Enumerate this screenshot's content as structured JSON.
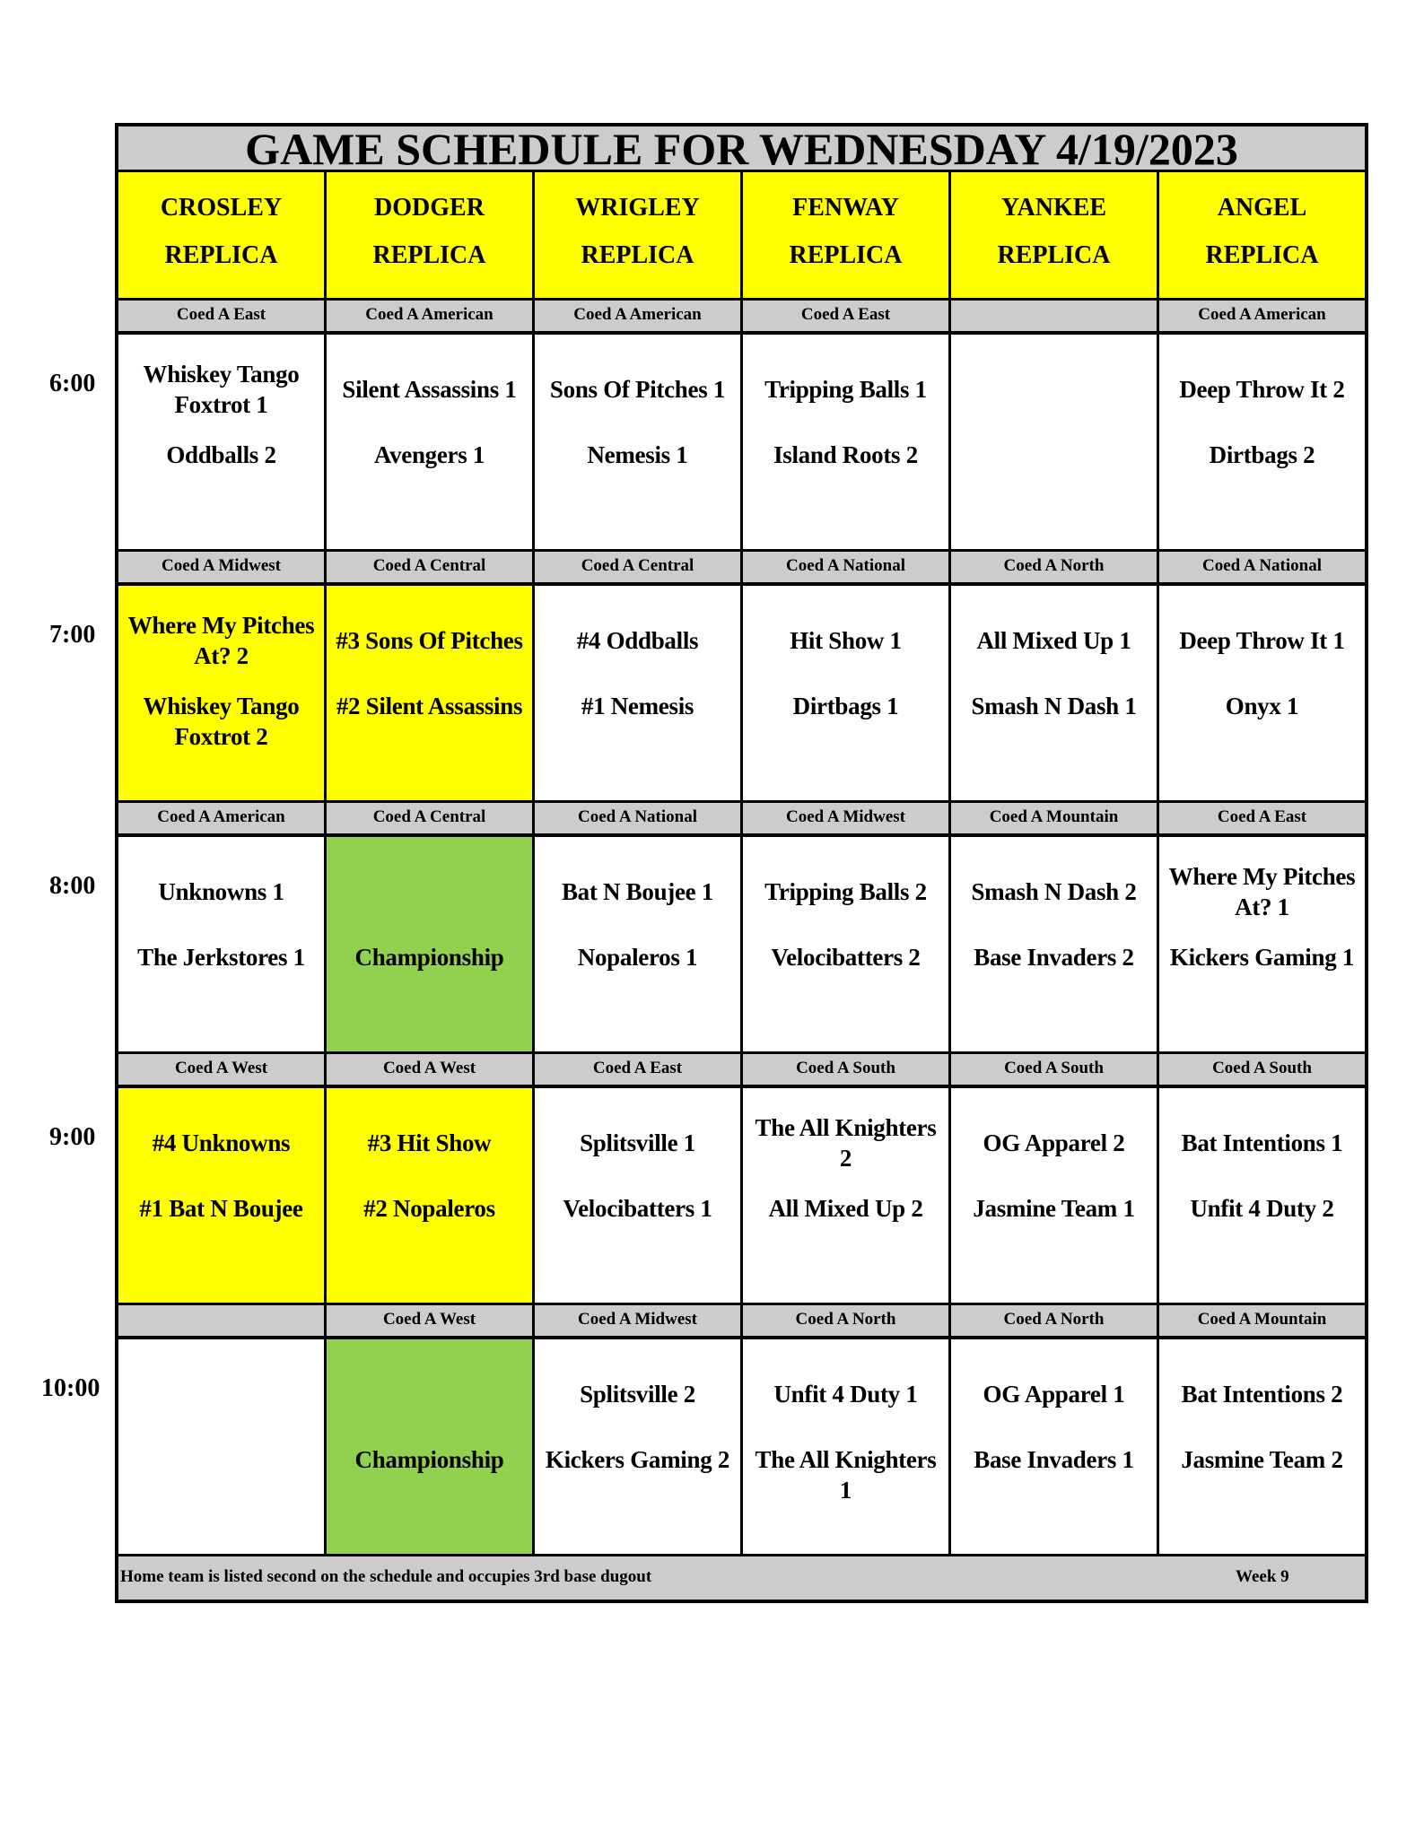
{
  "title": "GAME SCHEDULE FOR WEDNESDAY 4/19/2023",
  "fields": [
    {
      "name": "CROSLEY",
      "sub": "REPLICA"
    },
    {
      "name": "DODGER",
      "sub": "REPLICA"
    },
    {
      "name": "WRIGLEY",
      "sub": "REPLICA"
    },
    {
      "name": "FENWAY",
      "sub": "REPLICA"
    },
    {
      "name": "YANKEE",
      "sub": "REPLICA"
    },
    {
      "name": "ANGEL",
      "sub": "REPLICA"
    }
  ],
  "colors": {
    "header": "#ffff00",
    "division": "#cccccc",
    "playoff": "#ffff00",
    "championship": "#92d050"
  },
  "slots": [
    {
      "time": "6:00",
      "divisions": [
        "Coed A East",
        "Coed A American",
        "Coed A American",
        "Coed A East",
        "",
        "Coed A American"
      ],
      "games": [
        {
          "top": "Whiskey Tango Foxtrot 1",
          "bottom": "Oddballs 2",
          "bg": "white"
        },
        {
          "top": "Silent Assassins 1",
          "bottom": "Avengers 1",
          "bg": "white"
        },
        {
          "top": "Sons Of Pitches 1",
          "bottom": "Nemesis 1",
          "bg": "white"
        },
        {
          "top": "Tripping Balls 1",
          "bottom": "Island Roots 2",
          "bg": "white"
        },
        {
          "top": "",
          "bottom": "",
          "bg": "white"
        },
        {
          "top": "Deep Throw It 2",
          "bottom": "Dirtbags 2",
          "bg": "white"
        }
      ]
    },
    {
      "time": "7:00",
      "divisions": [
        "Coed A Midwest",
        "Coed A Central",
        "Coed A Central",
        "Coed A National",
        "Coed A North",
        "Coed A National"
      ],
      "games": [
        {
          "top": "Where My Pitches At? 2",
          "bottom": "Whiskey Tango Foxtrot 2",
          "bg": "yellow"
        },
        {
          "top": "#3 Sons Of Pitches",
          "bottom": "#2 Silent Assassins",
          "bg": "yellow"
        },
        {
          "top": "#4 Oddballs",
          "bottom": "#1 Nemesis",
          "bg": "white"
        },
        {
          "top": "Hit Show 1",
          "bottom": "Dirtbags 1",
          "bg": "white"
        },
        {
          "top": "All Mixed Up 1",
          "bottom": "Smash N Dash 1",
          "bg": "white"
        },
        {
          "top": "Deep Throw It 1",
          "bottom": "Onyx 1",
          "bg": "white"
        }
      ]
    },
    {
      "time": "8:00",
      "divisions": [
        "Coed A American",
        "Coed A Central",
        "Coed A National",
        "Coed A Midwest",
        "Coed A Mountain",
        "Coed A East"
      ],
      "games": [
        {
          "top": "Unknowns 1",
          "bottom": "The Jerkstores 1",
          "bg": "white"
        },
        {
          "top": "",
          "bottom": "Championship",
          "bg": "green"
        },
        {
          "top": "Bat N Boujee 1",
          "bottom": "Nopaleros 1",
          "bg": "white"
        },
        {
          "top": "Tripping Balls 2",
          "bottom": "Velocibatters 2",
          "bg": "white"
        },
        {
          "top": "Smash N Dash 2",
          "bottom": "Base Invaders 2",
          "bg": "white"
        },
        {
          "top": "Where My Pitches At? 1",
          "bottom": "Kickers Gaming 1",
          "bg": "white"
        }
      ]
    },
    {
      "time": "9:00",
      "divisions": [
        "Coed A West",
        "Coed A West",
        "Coed A East",
        "Coed A South",
        "Coed A South",
        "Coed A South"
      ],
      "games": [
        {
          "top": "#4 Unknowns",
          "bottom": "#1 Bat N Boujee",
          "bg": "yellow"
        },
        {
          "top": "#3 Hit Show",
          "bottom": "#2 Nopaleros",
          "bg": "yellow"
        },
        {
          "top": "Splitsville 1",
          "bottom": "Velocibatters 1",
          "bg": "white"
        },
        {
          "top": "The All Knighters 2",
          "bottom": "All Mixed Up 2",
          "bg": "white"
        },
        {
          "top": "OG Apparel 2",
          "bottom": "Jasmine Team 1",
          "bg": "white"
        },
        {
          "top": "Bat Intentions 1",
          "bottom": "Unfit 4 Duty 2",
          "bg": "white"
        }
      ]
    },
    {
      "time": "10:00",
      "divisions": [
        "",
        "Coed A West",
        "Coed A Midwest",
        "Coed A North",
        "Coed A North",
        "Coed A Mountain"
      ],
      "games": [
        {
          "top": "",
          "bottom": "",
          "bg": "white"
        },
        {
          "top": "",
          "bottom": "Championship",
          "bg": "green"
        },
        {
          "top": "Splitsville 2",
          "bottom": "Kickers Gaming 2",
          "bg": "white"
        },
        {
          "top": "Unfit 4 Duty 1",
          "bottom": "The All Knighters 1",
          "bg": "white"
        },
        {
          "top": "OG Apparel 1",
          "bottom": "Base Invaders 1",
          "bg": "white"
        },
        {
          "top": "Bat Intentions 2",
          "bottom": "Jasmine Team 2",
          "bg": "white"
        }
      ]
    }
  ],
  "footer": {
    "note": "Home team is listed second on the schedule and occupies 3rd base dugout",
    "week": "Week 9"
  }
}
